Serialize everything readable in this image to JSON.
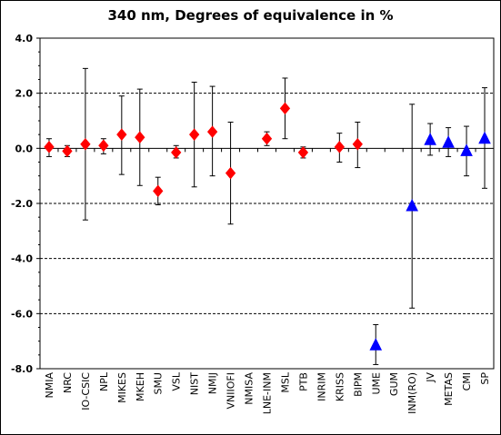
{
  "chart_data": {
    "type": "scatter",
    "title": "340 nm, Degrees of equivalence in %",
    "xlabel": "",
    "ylabel": "",
    "ylim": [
      -8.0,
      4.0
    ],
    "y_ticks": [
      "4.0",
      "2.0",
      "0.0",
      "-2.0",
      "-4.0",
      "-6.0",
      "-8.0"
    ],
    "y_tick_values": [
      4,
      2,
      0,
      -2,
      -4,
      -6,
      -8
    ],
    "grid": "horizontal dashed at major ticks",
    "legend": "none",
    "categories": [
      "NMIA",
      "NRC",
      "IO-CSIC",
      "NPL",
      "MIKES",
      "MKEH",
      "SMU",
      "VSL",
      "NIST",
      "NMIJ",
      "VNIIOFI",
      "NMISA",
      "LNE-INM",
      "MSL",
      "PTB",
      "INRIM",
      "KRISS",
      "BIPM",
      "UME",
      "GUM",
      "INM(RO)",
      "JV",
      "METAS",
      "CMI",
      "SP"
    ],
    "series": [
      {
        "marker": "diamond",
        "color": "#ff0000",
        "points": [
          {
            "x": "NMIA",
            "y": 0.05,
            "lower": -0.3,
            "upper": 0.35
          },
          {
            "x": "NRC",
            "y": -0.1,
            "lower": -0.3,
            "upper": 0.1
          },
          {
            "x": "IO-CSIC",
            "y": 0.15,
            "lower": -2.6,
            "upper": 2.9
          },
          {
            "x": "NPL",
            "y": 0.1,
            "lower": -0.2,
            "upper": 0.35
          },
          {
            "x": "MIKES",
            "y": 0.5,
            "lower": -0.95,
            "upper": 1.9
          },
          {
            "x": "MKEH",
            "y": 0.4,
            "lower": -1.35,
            "upper": 2.15
          },
          {
            "x": "SMU",
            "y": -1.55,
            "lower": -2.05,
            "upper": -1.05
          },
          {
            "x": "VSL",
            "y": -0.15,
            "lower": -0.35,
            "upper": 0.1
          },
          {
            "x": "NIST",
            "y": 0.5,
            "lower": -1.4,
            "upper": 2.4
          },
          {
            "x": "NMIJ",
            "y": 0.6,
            "lower": -1.0,
            "upper": 2.25
          },
          {
            "x": "VNIIOFI",
            "y": -0.9,
            "lower": -2.75,
            "upper": 0.95
          },
          {
            "x": "LNE-INM",
            "y": 0.35,
            "lower": 0.1,
            "upper": 0.6
          },
          {
            "x": "MSL",
            "y": 1.45,
            "lower": 0.35,
            "upper": 2.55
          },
          {
            "x": "PTB",
            "y": -0.15,
            "lower": -0.35,
            "upper": 0.05
          },
          {
            "x": "KRISS",
            "y": 0.05,
            "lower": -0.5,
            "upper": 0.55
          },
          {
            "x": "BIPM",
            "y": 0.15,
            "lower": -0.7,
            "upper": 0.95
          }
        ]
      },
      {
        "marker": "triangle",
        "color": "#0000ff",
        "points": [
          {
            "x": "UME",
            "y": -7.15,
            "lower": -7.85,
            "upper": -6.4
          },
          {
            "x": "INM(RO)",
            "y": -2.1,
            "lower": -5.8,
            "upper": 1.6
          },
          {
            "x": "JV",
            "y": 0.3,
            "lower": -0.25,
            "upper": 0.9
          },
          {
            "x": "METAS",
            "y": 0.2,
            "lower": -0.3,
            "upper": 0.75
          },
          {
            "x": "CMI",
            "y": -0.1,
            "lower": -1.0,
            "upper": 0.8
          },
          {
            "x": "SP",
            "y": 0.35,
            "lower": -1.45,
            "upper": 2.2
          }
        ]
      }
    ]
  }
}
